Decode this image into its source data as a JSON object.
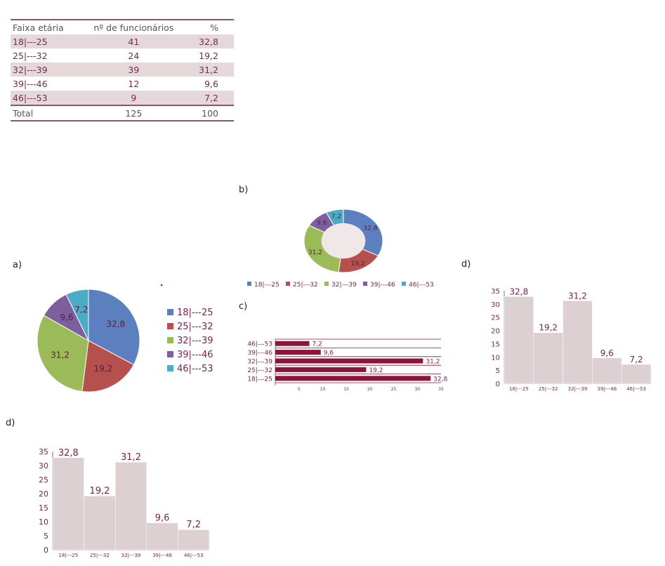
{
  "table": {
    "headers": [
      "Faixa etária",
      "nº de funcionários",
      "%"
    ],
    "rows": [
      [
        "18|---25",
        "41",
        "32,8"
      ],
      [
        "25|---32",
        "24",
        "19,2"
      ],
      [
        "32|---39",
        "39",
        "31,2"
      ],
      [
        "39|---46",
        "12",
        "9,6"
      ],
      [
        "46|---53",
        "9",
        "7,2"
      ]
    ],
    "total": [
      "Total",
      "125",
      "100"
    ]
  },
  "panel_labels": {
    "a": "a)",
    "b": "b)",
    "c": "c)",
    "d1": "d)",
    "d2": "d)"
  },
  "colors": {
    "series": [
      "#5b7fbf",
      "#b5504d",
      "#9bbb59",
      "#7d5fa0",
      "#4bacc6"
    ],
    "maroon": "#8a1538",
    "hist_fill": "#ddd0d2",
    "text": "#7a2448"
  },
  "chart_data": [
    {
      "id": "a",
      "type": "pie",
      "categories": [
        "18|---25",
        "25|---32",
        "32|---39",
        "39|---46",
        "46|---53"
      ],
      "values": [
        32.8,
        19.2,
        31.2,
        9.6,
        7.2
      ],
      "labels": [
        "32,8",
        "19,2",
        "31,2",
        "9,6",
        "7,2"
      ],
      "legend": "right"
    },
    {
      "id": "b",
      "type": "pie",
      "donut": true,
      "categories": [
        "18|---25",
        "25|---32",
        "32|---39",
        "39|---46",
        "46|---53"
      ],
      "values": [
        32.8,
        19.2,
        31.2,
        9.6,
        7.2
      ],
      "labels": [
        "32,8",
        "19,2",
        "31,2",
        "9,6",
        "7,2"
      ],
      "legend": "bottom"
    },
    {
      "id": "c",
      "type": "bar",
      "orientation": "horizontal",
      "categories": [
        "18|---25",
        "25|---32",
        "32|---39",
        "39|---46",
        "46|---53"
      ],
      "values": [
        32.8,
        19.2,
        31.2,
        9.6,
        7.2
      ],
      "labels": [
        "32,8",
        "19,2",
        "31,2",
        "9,6",
        "7,2"
      ],
      "xlim": [
        0,
        35
      ],
      "xticks": [
        5,
        10,
        15,
        20,
        25,
        30,
        35
      ]
    },
    {
      "id": "d1",
      "type": "bar",
      "histogram": true,
      "categories": [
        "18|---25",
        "25|---32",
        "32|---39",
        "39|---46",
        "46|---53"
      ],
      "values": [
        32.8,
        19.2,
        31.2,
        9.6,
        7.2
      ],
      "labels": [
        "32,8",
        "19,2",
        "31,2",
        "9,6",
        "7,2"
      ],
      "ylim": [
        0,
        35
      ],
      "yticks": [
        0,
        5,
        10,
        15,
        20,
        25,
        30,
        35
      ]
    },
    {
      "id": "d2",
      "type": "bar",
      "histogram": true,
      "categories": [
        "18|---25",
        "25|---32",
        "32|---39",
        "39|---46",
        "46|---53"
      ],
      "values": [
        32.8,
        19.2,
        31.2,
        9.6,
        7.2
      ],
      "labels": [
        "32,8",
        "19,2",
        "31,2",
        "9,6",
        "7,2"
      ],
      "ylim": [
        0,
        35
      ],
      "yticks": [
        0,
        5,
        10,
        15,
        20,
        25,
        30,
        35
      ]
    }
  ]
}
